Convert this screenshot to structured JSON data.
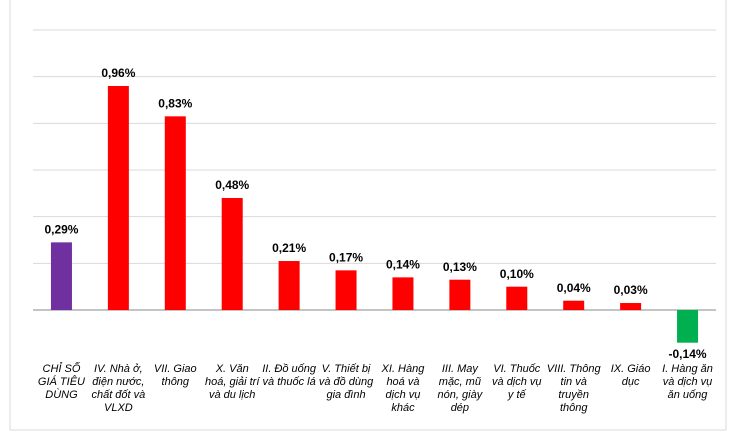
{
  "chart_data": {
    "type": "bar",
    "categories": [
      "CHỈ SỐ GIÁ TIÊU DÙNG",
      "IV. Nhà ở, điện nước, chất đốt và VLXD",
      "VII. Giao thông",
      "X. Văn hoá, giải trí và du lịch",
      "II. Đồ uống và thuốc lá",
      "V. Thiết bị và đồ dùng gia đình",
      "XI. Hàng hoá và dịch vụ khác",
      "III. May mặc, mũ nón, giày dép",
      "VI. Thuốc và dịch vụ y tế",
      "VIII. Thông tin và truyền thông",
      "IX. Giáo dục",
      "I. Hàng ăn và dịch vụ ăn uống"
    ],
    "values": [
      0.29,
      0.96,
      0.83,
      0.48,
      0.21,
      0.17,
      0.14,
      0.13,
      0.1,
      0.04,
      0.03,
      -0.14
    ],
    "value_labels": [
      "0,29%",
      "0,96%",
      "0,83%",
      "0,48%",
      "0,21%",
      "0,17%",
      "0,14%",
      "0,13%",
      "0,10%",
      "0,04%",
      "0,03%",
      "-0,14%"
    ],
    "colors": [
      "#7030a0",
      "#ff0000",
      "#ff0000",
      "#ff0000",
      "#ff0000",
      "#ff0000",
      "#ff0000",
      "#ff0000",
      "#ff0000",
      "#ff0000",
      "#ff0000",
      "#00b050"
    ],
    "ylim": [
      -0.2,
      1.2
    ],
    "yticks": [
      0.2,
      0.4,
      0.6,
      0.8,
      1.0,
      1.2
    ],
    "grid": true
  }
}
